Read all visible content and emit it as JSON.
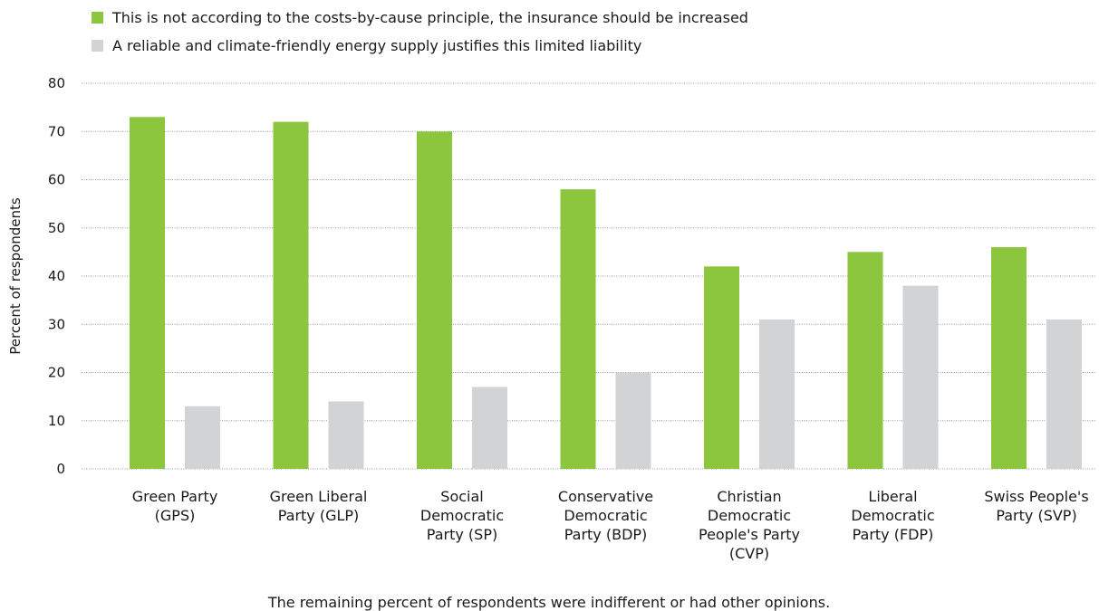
{
  "chart_data": {
    "type": "bar",
    "categories": [
      [
        "Green Party",
        "(GPS)"
      ],
      [
        "Green Liberal",
        "Party (GLP)"
      ],
      [
        "Social",
        "Democratic",
        "Party (SP)"
      ],
      [
        "Conservative",
        "Democratic",
        "Party (BDP)"
      ],
      [
        "Christian",
        "Democratic",
        "People's Party",
        "(CVP)"
      ],
      [
        "Liberal",
        "Democratic",
        "Party (FDP)"
      ],
      [
        "Swiss People's",
        "Party (SVP)"
      ]
    ],
    "series": [
      {
        "name": "This is not according to the costs-by-cause principle, the insurance should be increased",
        "color": "#8cc63f",
        "values": [
          73,
          72,
          70,
          58,
          42,
          45,
          46
        ]
      },
      {
        "name": "A reliable and climate-friendly energy supply justifies this limited liability",
        "color": "#d1d3d4",
        "values": [
          13,
          14,
          17,
          20,
          31,
          38,
          31
        ]
      }
    ],
    "ylabel": "Percent of respondents",
    "xlabel": "",
    "ylim": [
      0,
      80
    ],
    "yticks": [
      0,
      10,
      20,
      30,
      40,
      50,
      60,
      70,
      80
    ],
    "grid": true,
    "legend_position": "top-left",
    "footnote": "The remaining percent of respondents were indifferent or had other opinions."
  }
}
